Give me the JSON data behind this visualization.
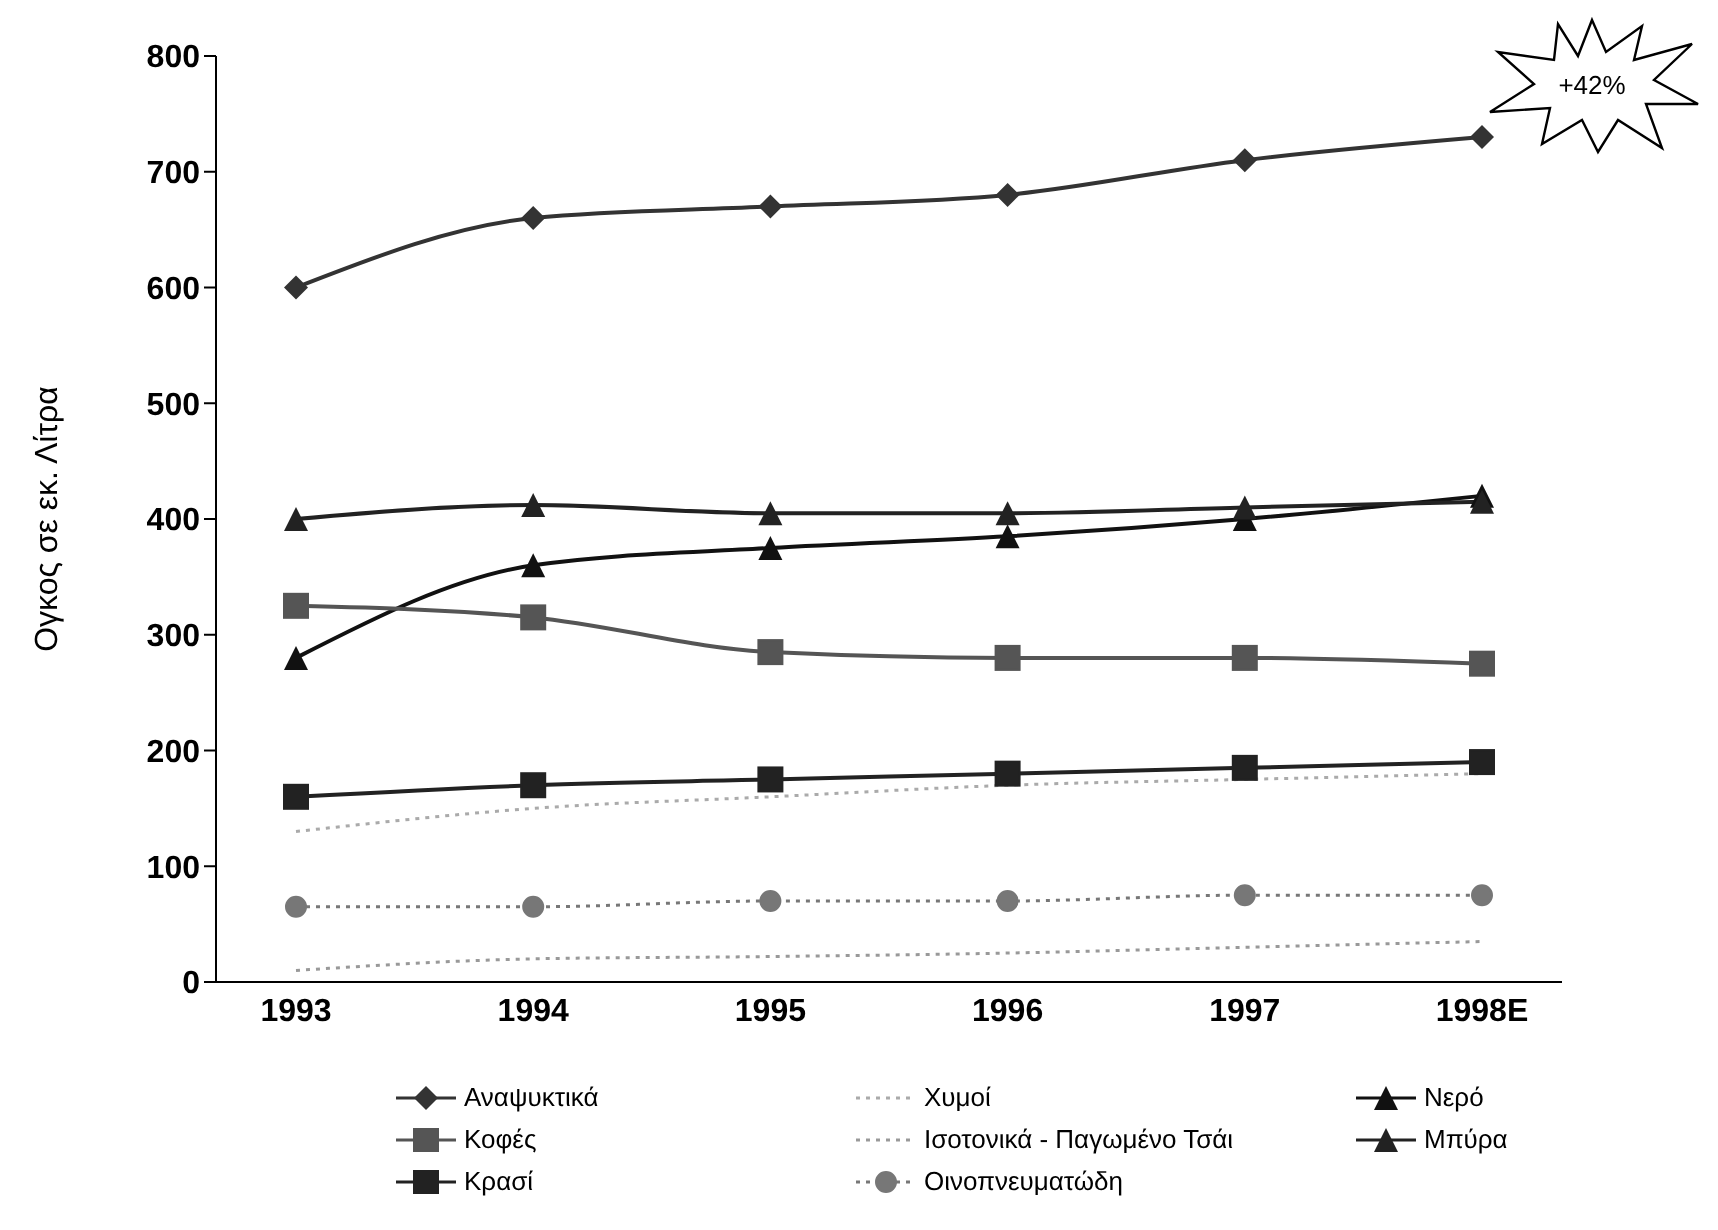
{
  "chart_data": {
    "type": "line",
    "ylabel": "Ογκος σε εκ. Λίτρα",
    "categories": [
      "1993",
      "1994",
      "1995",
      "1996",
      "1997",
      "1998E"
    ],
    "ylim": [
      0,
      800
    ],
    "yticks": [
      0,
      100,
      200,
      300,
      400,
      500,
      600,
      700,
      800
    ],
    "grid": false,
    "legend": "bottom",
    "annotations": [
      "+42%"
    ],
    "series": [
      {
        "name": "Αναψυκτικά",
        "color": "#333333",
        "marker": "diamond",
        "line_style": "solid",
        "values": [
          600,
          660,
          670,
          680,
          710,
          730
        ]
      },
      {
        "name": "Χυμοί",
        "color": "#aaaaaa",
        "marker": "none",
        "line_style": "dotted",
        "values": [
          130,
          150,
          160,
          170,
          175,
          180
        ]
      },
      {
        "name": "Νερό",
        "color": "#111111",
        "marker": "triangle",
        "line_style": "solid",
        "values": [
          280,
          360,
          375,
          385,
          400,
          420
        ]
      },
      {
        "name": "Κοφές",
        "color": "#555555",
        "marker": "square",
        "line_style": "solid",
        "values": [
          325,
          315,
          285,
          280,
          280,
          275
        ]
      },
      {
        "name": "Ισοτονικά - Παγωμένο Τσάι",
        "color": "#999999",
        "marker": "none",
        "line_style": "dotted",
        "values": [
          10,
          20,
          22,
          25,
          30,
          35
        ]
      },
      {
        "name": "Μπύρα",
        "color": "#222222",
        "marker": "triangle",
        "line_style": "solid",
        "values": [
          400,
          412,
          405,
          405,
          410,
          415
        ]
      },
      {
        "name": "Κρασί",
        "color": "#222222",
        "marker": "square",
        "line_style": "solid",
        "values": [
          160,
          170,
          175,
          180,
          185,
          190
        ]
      },
      {
        "name": "Οινοπνευματώδη",
        "color": "#777777",
        "marker": "circle",
        "line_style": "dotted",
        "values": [
          65,
          65,
          70,
          70,
          75,
          75
        ]
      }
    ]
  }
}
